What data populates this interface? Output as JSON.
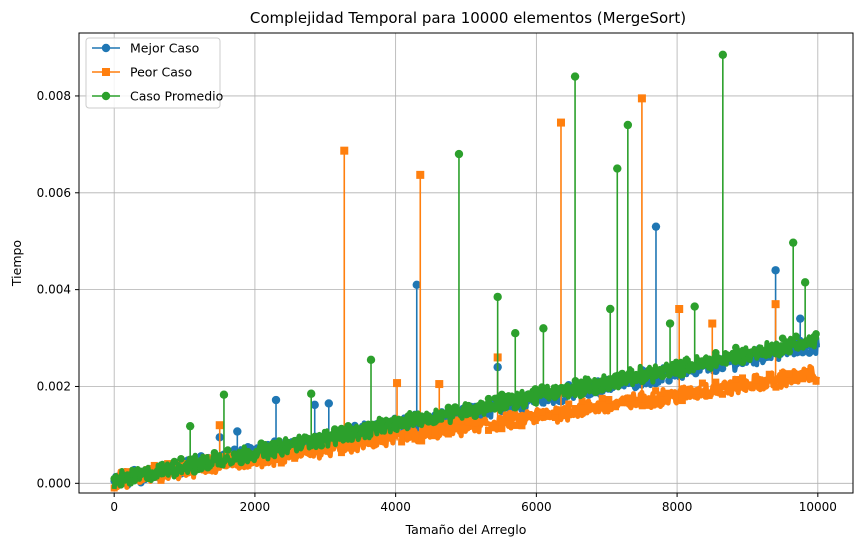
{
  "chart_data": {
    "type": "line",
    "title": "Complejidad Temporal para 10000 elementos (MergeSort)",
    "xlabel": "Tamaño del Arreglo",
    "ylabel": "Tiempo",
    "xlim": [
      -500,
      10500
    ],
    "ylim": [
      -0.0002,
      0.0093
    ],
    "xticks": [
      "0",
      "2000",
      "4000",
      "6000",
      "8000",
      "10000"
    ],
    "yticks": [
      "0.000",
      "0.002",
      "0.004",
      "0.006",
      "0.008"
    ],
    "xtick_values": [
      0,
      2000,
      4000,
      6000,
      8000,
      10000
    ],
    "ytick_values": [
      0,
      0.002,
      0.004,
      0.006,
      0.008
    ],
    "grid": true,
    "legend_position": "upper-left",
    "series": [
      {
        "name": "Mejor Caso",
        "color": "#1f77b4",
        "marker": "circle",
        "trend": {
          "x": [
            0,
            10000
          ],
          "y": [
            0.0,
            0.0028
          ]
        },
        "spikes": [
          {
            "x": 1500,
            "y": 0.00095
          },
          {
            "x": 1750,
            "y": 0.00107
          },
          {
            "x": 2300,
            "y": 0.00172
          },
          {
            "x": 2850,
            "y": 0.00162
          },
          {
            "x": 3050,
            "y": 0.00165
          },
          {
            "x": 4300,
            "y": 0.0041
          },
          {
            "x": 5450,
            "y": 0.0024
          },
          {
            "x": 7700,
            "y": 0.0053
          },
          {
            "x": 9400,
            "y": 0.0044
          },
          {
            "x": 9750,
            "y": 0.0034
          }
        ]
      },
      {
        "name": "Peor Caso",
        "color": "#ff7f0e",
        "marker": "square",
        "trend": {
          "x": [
            0,
            10000
          ],
          "y": [
            0.0,
            0.0022
          ]
        },
        "spikes": [
          {
            "x": 1500,
            "y": 0.0012
          },
          {
            "x": 3270,
            "y": 0.00687
          },
          {
            "x": 4020,
            "y": 0.00207
          },
          {
            "x": 4350,
            "y": 0.00637
          },
          {
            "x": 4620,
            "y": 0.00205
          },
          {
            "x": 5450,
            "y": 0.0026
          },
          {
            "x": 6350,
            "y": 0.00745
          },
          {
            "x": 7500,
            "y": 0.00795
          },
          {
            "x": 8030,
            "y": 0.0036
          },
          {
            "x": 8500,
            "y": 0.0033
          },
          {
            "x": 9400,
            "y": 0.0037
          }
        ]
      },
      {
        "name": "Caso Promedio",
        "color": "#2ca02c",
        "marker": "circle",
        "trend": {
          "x": [
            0,
            10000
          ],
          "y": [
            0.0,
            0.0029
          ]
        },
        "spikes": [
          {
            "x": 1080,
            "y": 0.00118
          },
          {
            "x": 1560,
            "y": 0.00183
          },
          {
            "x": 2800,
            "y": 0.00185
          },
          {
            "x": 3650,
            "y": 0.00255
          },
          {
            "x": 4900,
            "y": 0.0068
          },
          {
            "x": 5450,
            "y": 0.00385
          },
          {
            "x": 5700,
            "y": 0.0031
          },
          {
            "x": 6100,
            "y": 0.0032
          },
          {
            "x": 6550,
            "y": 0.0084
          },
          {
            "x": 7050,
            "y": 0.0036
          },
          {
            "x": 7150,
            "y": 0.0065
          },
          {
            "x": 7300,
            "y": 0.0074
          },
          {
            "x": 7900,
            "y": 0.0033
          },
          {
            "x": 8250,
            "y": 0.00365
          },
          {
            "x": 8650,
            "y": 0.00885
          },
          {
            "x": 9650,
            "y": 0.00497
          },
          {
            "x": 9820,
            "y": 0.00415
          }
        ]
      }
    ]
  }
}
